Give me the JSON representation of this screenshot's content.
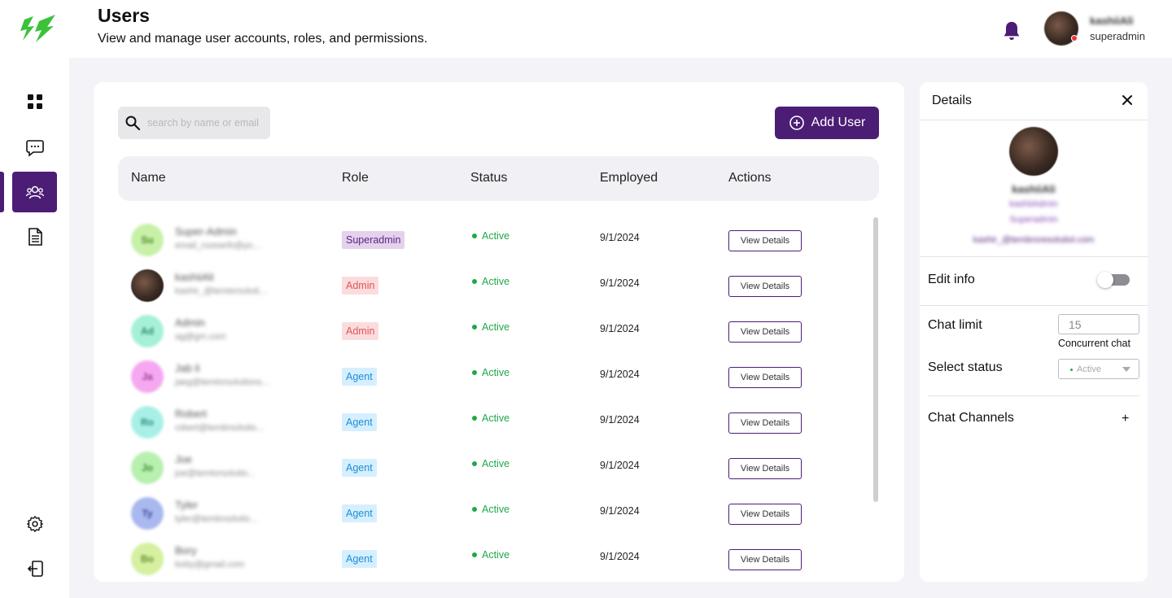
{
  "sidebar": {
    "items": [
      {
        "name": "dashboard",
        "icon": "grid-icon"
      },
      {
        "name": "chats",
        "icon": "chat-bubble-icon"
      },
      {
        "name": "users",
        "icon": "users-icon",
        "active": true
      },
      {
        "name": "reports",
        "icon": "document-icon"
      }
    ],
    "bottom": [
      {
        "name": "settings",
        "icon": "gear-icon"
      },
      {
        "name": "logout",
        "icon": "logout-icon"
      }
    ]
  },
  "header": {
    "title": "Users",
    "subtitle": "View and manage user accounts, roles, and permissions.",
    "user_name": "kashiiAli",
    "user_role": "superadmin"
  },
  "toolbar": {
    "search_placeholder": "search by name or email",
    "add_user_label": "Add User"
  },
  "table": {
    "columns": [
      "Name",
      "Role",
      "Status",
      "Employed",
      "Actions"
    ],
    "rows": [
      {
        "initials": "Su",
        "name": "Super-Admin",
        "email": "email_rozearth@yo...",
        "role": "Superadmin",
        "status": "Active",
        "employed": "9/1/2024",
        "action": "View Details"
      },
      {
        "initials": "",
        "name": "kashiiAli",
        "email": "kashir_@temtorsoluti...",
        "role": "Admin",
        "status": "Active",
        "employed": "9/1/2024",
        "action": "View Details"
      },
      {
        "initials": "Ad",
        "name": "Admin",
        "email": "ag@gm.com",
        "role": "Admin",
        "status": "Active",
        "employed": "9/1/2024",
        "action": "View Details"
      },
      {
        "initials": "Ja",
        "name": "Jab li",
        "email": "jaeg@temtorsolutions...",
        "role": "Agent",
        "status": "Active",
        "employed": "9/1/2024",
        "action": "View Details"
      },
      {
        "initials": "Ro",
        "name": "Robert",
        "email": "robert@tembrsolutio...",
        "role": "Agent",
        "status": "Active",
        "employed": "9/1/2024",
        "action": "View Details"
      },
      {
        "initials": "Jo",
        "name": "Joe",
        "email": "joe@temtorsolutio...",
        "role": "Agent",
        "status": "Active",
        "employed": "9/1/2024",
        "action": "View Details"
      },
      {
        "initials": "Ty",
        "name": "Tyler",
        "email": "tyler@tembrsolutio...",
        "role": "Agent",
        "status": "Active",
        "employed": "9/1/2024",
        "action": "View Details"
      },
      {
        "initials": "Bo",
        "name": "Bory",
        "email": "boby@gmail.com",
        "role": "Agent",
        "status": "Active",
        "employed": "9/1/2024",
        "action": "View Details"
      }
    ]
  },
  "details": {
    "title": "Details",
    "name": "kashiiAli",
    "username": "kashiiAdmin",
    "role": "Superadmin",
    "email": "kashir_@tembroresolutiol.com",
    "edit_info_label": "Edit info",
    "chat_limit_label": "Chat limit",
    "chat_limit_value": "15",
    "concurrent_label": "Concurrent chat",
    "select_status_label": "Select status",
    "status_value": "Active",
    "chat_channels_label": "Chat Channels",
    "plus_symbol": "+"
  },
  "colors": {
    "brand": "#4c1d75",
    "logo_green": "#3cc13b",
    "active_green": "#1fa84a",
    "superadmin_bg": "#e4d2ec",
    "superadmin_fg": "#5a2582",
    "admin_bg": "#fbdcdc",
    "admin_fg": "#e0555a",
    "agent_bg": "#d6efff",
    "agent_fg": "#1b8ed6"
  }
}
